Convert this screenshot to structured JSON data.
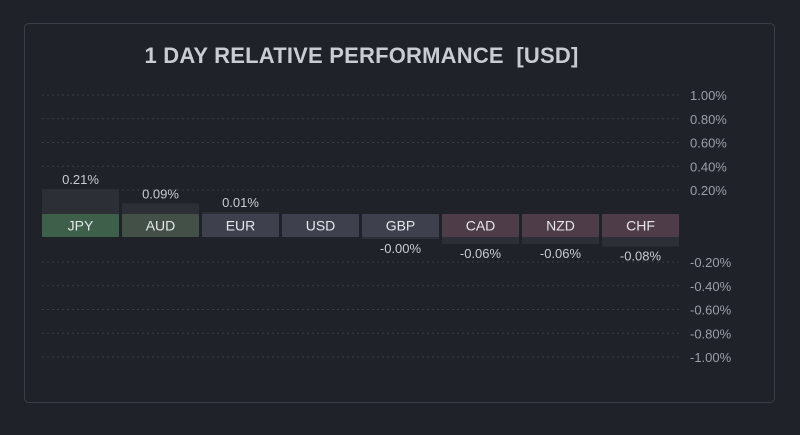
{
  "chart_data": {
    "type": "bar",
    "title": "1 DAY RELATIVE PERFORMANCE  [USD]",
    "categories": [
      "JPY",
      "AUD",
      "EUR",
      "USD",
      "GBP",
      "CAD",
      "NZD",
      "CHF"
    ],
    "values": [
      0.21,
      0.09,
      0.01,
      0,
      -0.001,
      -0.06,
      -0.06,
      -0.08
    ],
    "value_labels": [
      "0.21%",
      "0.09%",
      "0.01%",
      "",
      "-0.00%",
      "-0.06%",
      "-0.06%",
      "-0.08%"
    ],
    "ylim": [
      -1.0,
      1.0
    ],
    "yticks_pos": [
      "1.00%",
      "0.80%",
      "0.60%",
      "0.40%",
      "0.20%"
    ],
    "yticks_neg": [
      "-0.20%",
      "-0.40%",
      "-0.60%",
      "-0.80%",
      "-1.00%"
    ],
    "ytick_values_pos": [
      1.0,
      0.8,
      0.6,
      0.4,
      0.2
    ],
    "ytick_values_neg": [
      -0.2,
      -0.4,
      -0.6,
      -0.8,
      -1.0
    ],
    "grid": true,
    "colors": {
      "background": "#1f2228",
      "label_positive_strong": "#3e5f4a",
      "label_positive_light": "#435048",
      "label_neutral": "#3e414d",
      "label_negative": "#4e3c48",
      "bar_fill": "#2c3036",
      "grid": "#3a3e46"
    }
  }
}
